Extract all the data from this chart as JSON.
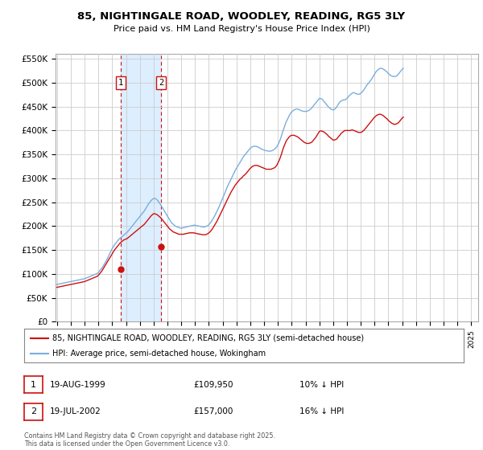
{
  "title": "85, NIGHTINGALE ROAD, WOODLEY, READING, RG5 3LY",
  "subtitle": "Price paid vs. HM Land Registry's House Price Index (HPI)",
  "legend_line1": "85, NIGHTINGALE ROAD, WOODLEY, READING, RG5 3LY (semi-detached house)",
  "legend_line2": "HPI: Average price, semi-detached house, Wokingham",
  "footnote": "Contains HM Land Registry data © Crown copyright and database right 2025.\nThis data is licensed under the Open Government Licence v3.0.",
  "transaction1_date": "19-AUG-1999",
  "transaction1_price": "£109,950",
  "transaction1_hpi": "10% ↓ HPI",
  "transaction2_date": "19-JUL-2002",
  "transaction2_price": "£157,000",
  "transaction2_hpi": "16% ↓ HPI",
  "sale1_year": 1999.62,
  "sale1_price": 109950,
  "sale2_year": 2002.54,
  "sale2_price": 157000,
  "hpi_color": "#7aaedc",
  "price_color": "#cc1111",
  "shade_color": "#ddeeff",
  "grid_color": "#cccccc",
  "bg_color": "#ffffff",
  "ylim": [
    0,
    560000
  ],
  "yticks": [
    0,
    50000,
    100000,
    150000,
    200000,
    250000,
    300000,
    350000,
    400000,
    450000,
    500000,
    550000
  ],
  "ytick_labels": [
    "£0",
    "£50K",
    "£100K",
    "£150K",
    "£200K",
    "£250K",
    "£300K",
    "£350K",
    "£400K",
    "£450K",
    "£500K",
    "£550K"
  ],
  "xlim": [
    1994.9,
    2025.5
  ],
  "xtick_years": [
    1995,
    1996,
    1997,
    1998,
    1999,
    2000,
    2001,
    2002,
    2003,
    2004,
    2005,
    2006,
    2007,
    2008,
    2009,
    2010,
    2011,
    2012,
    2013,
    2014,
    2015,
    2016,
    2017,
    2018,
    2019,
    2020,
    2021,
    2022,
    2023,
    2024,
    2025
  ],
  "hpi_monthly_start": 1995.0,
  "hpi_monthly_step": 0.0833,
  "hpi_values": [
    78000,
    78500,
    79000,
    79500,
    80000,
    80500,
    81000,
    81500,
    82000,
    82500,
    83000,
    83500,
    84000,
    84500,
    85000,
    85500,
    86000,
    86500,
    87000,
    87500,
    88000,
    88500,
    89000,
    89500,
    90000,
    91000,
    92000,
    93000,
    94000,
    95000,
    96000,
    97000,
    98000,
    99000,
    100000,
    101000,
    103000,
    106000,
    109000,
    112000,
    116000,
    120000,
    124000,
    128000,
    133000,
    138000,
    143000,
    148000,
    153000,
    157000,
    161000,
    164000,
    167000,
    170000,
    173000,
    175000,
    177000,
    179000,
    181000,
    183000,
    185000,
    187000,
    190000,
    193000,
    196000,
    199000,
    202000,
    205000,
    208000,
    211000,
    214000,
    217000,
    220000,
    223000,
    226000,
    229000,
    232000,
    236000,
    240000,
    244000,
    248000,
    251000,
    254000,
    256000,
    258000,
    258000,
    257000,
    255000,
    252000,
    249000,
    245000,
    241000,
    237000,
    233000,
    229000,
    225000,
    221000,
    217000,
    213000,
    209000,
    206000,
    204000,
    202000,
    200000,
    199000,
    198000,
    197000,
    196000,
    196000,
    196000,
    197000,
    197000,
    198000,
    199000,
    199000,
    200000,
    200000,
    201000,
    201000,
    202000,
    202000,
    201000,
    201000,
    200000,
    200000,
    199000,
    199000,
    198000,
    198000,
    199000,
    200000,
    201000,
    203000,
    206000,
    209000,
    213000,
    217000,
    221000,
    226000,
    231000,
    236000,
    241000,
    247000,
    253000,
    258000,
    264000,
    270000,
    276000,
    282000,
    287000,
    292000,
    297000,
    302000,
    307000,
    312000,
    317000,
    321000,
    325000,
    329000,
    333000,
    337000,
    341000,
    345000,
    348000,
    351000,
    354000,
    357000,
    360000,
    363000,
    365000,
    366000,
    367000,
    367000,
    367000,
    366000,
    365000,
    364000,
    362000,
    361000,
    360000,
    359000,
    358000,
    358000,
    357000,
    357000,
    357000,
    357000,
    358000,
    359000,
    361000,
    363000,
    366000,
    370000,
    375000,
    381000,
    388000,
    396000,
    403000,
    410000,
    417000,
    422000,
    427000,
    432000,
    436000,
    439000,
    441000,
    443000,
    444000,
    445000,
    445000,
    444000,
    443000,
    442000,
    441000,
    440000,
    440000,
    440000,
    440000,
    441000,
    442000,
    444000,
    446000,
    449000,
    452000,
    455000,
    458000,
    461000,
    464000,
    467000,
    467000,
    466000,
    464000,
    461000,
    458000,
    455000,
    452000,
    449000,
    447000,
    445000,
    444000,
    443000,
    444000,
    446000,
    449000,
    453000,
    457000,
    460000,
    462000,
    463000,
    464000,
    464000,
    465000,
    467000,
    470000,
    473000,
    475000,
    477000,
    479000,
    479000,
    478000,
    477000,
    476000,
    476000,
    476000,
    478000,
    480000,
    483000,
    486000,
    490000,
    494000,
    497000,
    500000,
    503000,
    506000,
    510000,
    514000,
    518000,
    522000,
    525000,
    527000,
    529000,
    530000,
    530000,
    529000,
    528000,
    526000,
    524000,
    522000,
    519000,
    517000,
    515000,
    514000,
    513000,
    513000,
    513000,
    514000,
    516000,
    519000,
    522000,
    525000,
    528000,
    530000
  ],
  "price_values": [
    72000,
    72500,
    73000,
    73500,
    74000,
    74500,
    75000,
    75500,
    76000,
    76500,
    77000,
    77500,
    78000,
    78500,
    79000,
    79500,
    80000,
    80500,
    81000,
    81500,
    82000,
    82500,
    83000,
    83500,
    84000,
    85000,
    86000,
    87000,
    88000,
    89000,
    90000,
    91000,
    92000,
    93000,
    94000,
    95000,
    97000,
    100000,
    103000,
    106000,
    110000,
    114000,
    118000,
    122000,
    126000,
    130000,
    134000,
    138000,
    142000,
    146000,
    150000,
    153000,
    156000,
    159000,
    162000,
    165000,
    167000,
    169000,
    171000,
    172000,
    173000,
    174000,
    176000,
    178000,
    180000,
    182000,
    184000,
    186000,
    188000,
    190000,
    192000,
    194000,
    196000,
    198000,
    200000,
    202000,
    204000,
    207000,
    210000,
    213000,
    216000,
    219000,
    222000,
    224000,
    226000,
    226000,
    225000,
    224000,
    222000,
    220000,
    218000,
    215000,
    212000,
    209000,
    206000,
    203000,
    200000,
    197000,
    194000,
    192000,
    190000,
    188000,
    187000,
    186000,
    185000,
    184000,
    183000,
    183000,
    183000,
    183000,
    183000,
    184000,
    184000,
    185000,
    185000,
    186000,
    186000,
    186000,
    186000,
    186000,
    185000,
    185000,
    184000,
    184000,
    183000,
    183000,
    182000,
    182000,
    182000,
    182000,
    183000,
    184000,
    186000,
    188000,
    191000,
    194000,
    198000,
    202000,
    206000,
    210000,
    215000,
    220000,
    225000,
    230000,
    235000,
    240000,
    245000,
    250000,
    255000,
    260000,
    265000,
    270000,
    274000,
    278000,
    282000,
    286000,
    289000,
    292000,
    295000,
    298000,
    300000,
    302000,
    305000,
    307000,
    309000,
    312000,
    315000,
    318000,
    321000,
    323000,
    325000,
    326000,
    327000,
    327000,
    327000,
    326000,
    325000,
    324000,
    323000,
    322000,
    321000,
    320000,
    319000,
    319000,
    319000,
    319000,
    319000,
    320000,
    321000,
    322000,
    324000,
    327000,
    332000,
    337000,
    343000,
    350000,
    358000,
    365000,
    371000,
    377000,
    381000,
    384000,
    387000,
    389000,
    390000,
    390000,
    390000,
    389000,
    388000,
    387000,
    385000,
    383000,
    381000,
    379000,
    377000,
    375000,
    374000,
    373000,
    373000,
    373000,
    374000,
    375000,
    377000,
    380000,
    383000,
    386000,
    390000,
    394000,
    398000,
    399000,
    399000,
    398000,
    397000,
    395000,
    393000,
    391000,
    388000,
    386000,
    384000,
    382000,
    380000,
    380000,
    381000,
    382000,
    385000,
    388000,
    391000,
    394000,
    396000,
    398000,
    400000,
    400000,
    400000,
    400000,
    400000,
    400000,
    401000,
    401000,
    400000,
    399000,
    398000,
    397000,
    396000,
    396000,
    396000,
    397000,
    399000,
    401000,
    404000,
    407000,
    410000,
    413000,
    416000,
    419000,
    422000,
    425000,
    428000,
    430000,
    432000,
    433000,
    434000,
    434000,
    433000,
    432000,
    430000,
    428000,
    426000,
    424000,
    421000,
    419000,
    417000,
    415000,
    414000,
    413000,
    413000,
    414000,
    415000,
    417000,
    420000,
    423000,
    426000,
    428000
  ]
}
